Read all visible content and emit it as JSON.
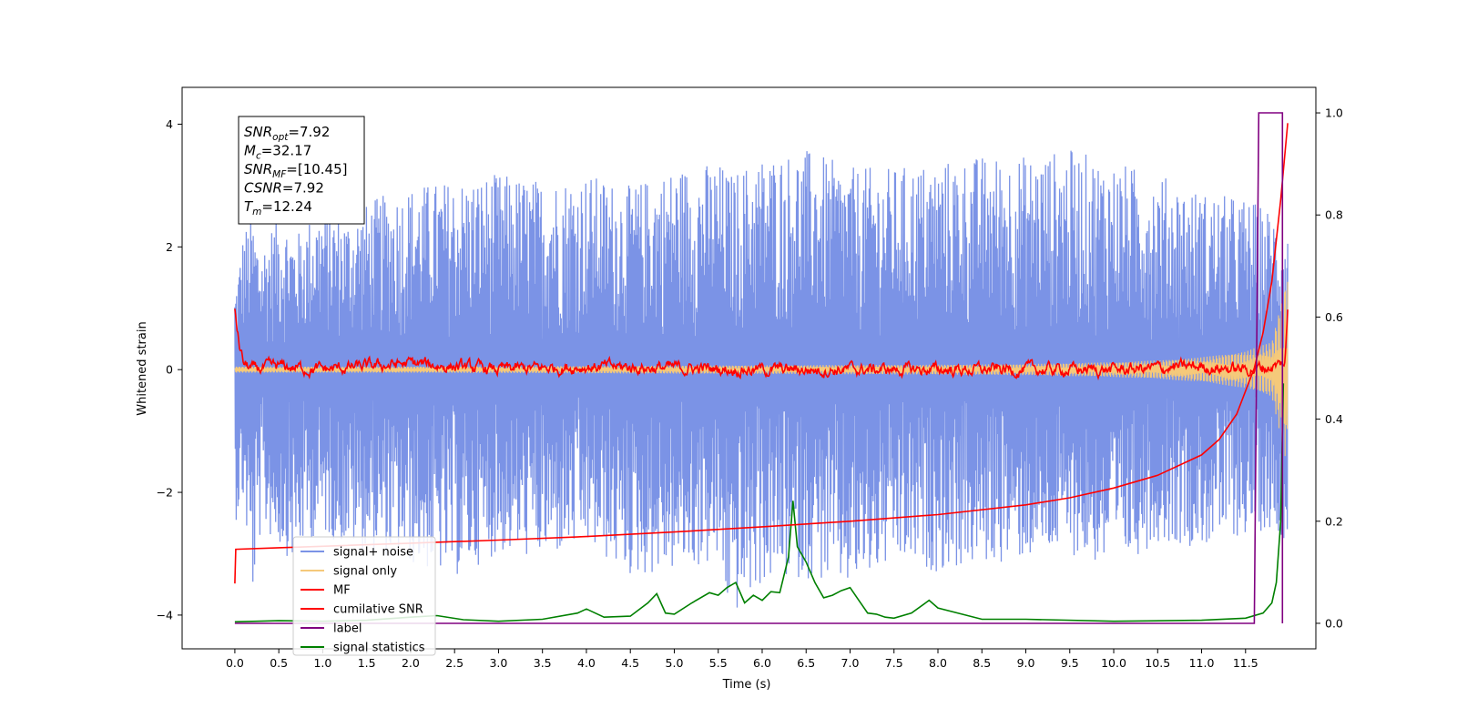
{
  "chart_data": {
    "type": "line",
    "xlabel": "Time (s)",
    "ylabel": "Whitened strain",
    "xlim": [
      -0.6,
      12.3
    ],
    "ylim": [
      -4.55,
      4.6
    ],
    "ylim_right": [
      -0.05,
      1.05
    ],
    "x_ticks": [
      "0.0",
      "0.5",
      "1.0",
      "1.5",
      "2.0",
      "2.5",
      "3.0",
      "3.5",
      "4.0",
      "4.5",
      "5.0",
      "5.5",
      "6.0",
      "6.5",
      "7.0",
      "7.5",
      "8.0",
      "8.5",
      "9.0",
      "9.5",
      "10.0",
      "10.5",
      "11.0",
      "11.5"
    ],
    "y_ticks_left": [
      "4",
      "2",
      "0",
      "−2",
      "−4"
    ],
    "y_ticks_right": [
      "1.0",
      "0.8",
      "0.6",
      "0.4",
      "0.2",
      "0.0"
    ],
    "legend_position": "lower-left",
    "info_box": [
      {
        "base": "SNR",
        "sub": "opt",
        "value": "=7.92"
      },
      {
        "base": "M",
        "sub": "c",
        "value": "=32.17"
      },
      {
        "base": "SNR",
        "sub": "MF",
        "value": "=[10.45]"
      },
      {
        "base": "CSNR",
        "sub": "",
        "value": "=7.92"
      },
      {
        "base": "T",
        "sub": "m",
        "value": "=12.24"
      }
    ],
    "series": [
      {
        "name": "signal+ noise",
        "axis": "left",
        "color": "#7b93e6",
        "description_range": [
          -3.8,
          3.75
        ],
        "x": [
          0.0,
          0.1,
          0.2,
          0.3,
          0.5,
          0.7,
          0.8,
          1.0,
          1.3,
          1.6,
          2.0,
          2.5,
          3.0,
          3.5,
          4.0,
          4.5,
          5.0,
          5.5,
          5.64,
          6.0,
          6.5,
          7.0,
          7.5,
          8.0,
          8.5,
          9.0,
          9.5,
          10.0,
          10.5,
          11.0,
          11.5,
          11.8,
          11.98
        ],
        "upper": [
          1.3,
          2.3,
          2.5,
          2.0,
          2.6,
          2.2,
          2.4,
          2.7,
          2.5,
          2.8,
          3.0,
          3.1,
          3.2,
          3.1,
          3.2,
          3.0,
          3.3,
          3.4,
          3.2,
          3.5,
          3.6,
          3.3,
          3.3,
          3.4,
          3.5,
          3.5,
          3.6,
          3.4,
          3.2,
          2.9,
          2.8,
          2.6,
          2.3
        ],
        "lower": [
          -2.5,
          -2.2,
          -3.8,
          -2.6,
          -2.9,
          -3.2,
          -2.8,
          -2.7,
          -2.9,
          -3.0,
          -3.2,
          -3.4,
          -3.0,
          -3.1,
          -2.9,
          -3.4,
          -3.3,
          -3.2,
          -4.1,
          -3.5,
          -3.4,
          -3.6,
          -3.2,
          -3.3,
          -3.2,
          -3.1,
          -3.0,
          -3.3,
          -2.8,
          -2.9,
          -2.7,
          -2.6,
          -2.8
        ]
      },
      {
        "name": "signal only",
        "axis": "left",
        "color": "#f5c97a",
        "x": [
          0.0,
          2.0,
          4.0,
          6.0,
          8.0,
          9.0,
          10.0,
          10.5,
          11.0,
          11.5,
          11.8,
          11.98
        ],
        "amplitude": [
          0.05,
          0.05,
          0.06,
          0.07,
          0.08,
          0.09,
          0.12,
          0.15,
          0.2,
          0.3,
          0.45,
          1.6
        ]
      },
      {
        "name": "MF",
        "axis": "left",
        "color": "#ff0000",
        "x": [
          0.0,
          0.05,
          0.1,
          0.2,
          0.5,
          1.0,
          2.0,
          3.0,
          4.0,
          6.0,
          8.0,
          10.0,
          11.0,
          11.5,
          11.8,
          11.95,
          11.98
        ],
        "y": [
          1.0,
          0.4,
          0.1,
          0.0,
          0.05,
          0.0,
          0.1,
          0.0,
          0.05,
          0.0,
          0.0,
          0.0,
          0.05,
          0.0,
          0.05,
          0.1,
          0.95
        ]
      },
      {
        "name": "cumilative SNR",
        "axis": "right",
        "color": "#ff0000",
        "x": [
          0.0,
          0.01,
          0.5,
          1.0,
          2.0,
          3.0,
          4.0,
          5.0,
          6.0,
          7.0,
          8.0,
          9.0,
          9.5,
          10.0,
          10.5,
          11.0,
          11.2,
          11.4,
          11.6,
          11.7,
          11.8,
          11.9,
          11.98
        ],
        "y": [
          0.078,
          0.145,
          0.148,
          0.151,
          0.157,
          0.163,
          0.17,
          0.179,
          0.189,
          0.2,
          0.213,
          0.232,
          0.246,
          0.265,
          0.29,
          0.33,
          0.36,
          0.41,
          0.5,
          0.57,
          0.67,
          0.83,
          0.98
        ]
      },
      {
        "name": "label",
        "axis": "right",
        "color": "#800080",
        "x": [
          0.0,
          11.6,
          11.65,
          11.92,
          11.92
        ],
        "y": [
          0.0,
          0.0,
          1.0,
          1.0,
          0.0
        ]
      },
      {
        "name": "signal statistics",
        "axis": "right",
        "color": "#008000",
        "x": [
          0.0,
          0.5,
          1.0,
          1.5,
          2.0,
          2.3,
          2.6,
          3.0,
          3.5,
          3.9,
          4.0,
          4.2,
          4.5,
          4.7,
          4.8,
          4.9,
          5.0,
          5.2,
          5.4,
          5.5,
          5.6,
          5.7,
          5.8,
          5.9,
          6.0,
          6.1,
          6.2,
          6.3,
          6.35,
          6.4,
          6.5,
          6.6,
          6.7,
          6.8,
          6.9,
          7.0,
          7.1,
          7.2,
          7.3,
          7.4,
          7.5,
          7.7,
          7.9,
          8.0,
          8.5,
          9.0,
          10.0,
          11.0,
          11.5,
          11.7,
          11.8,
          11.85,
          11.9,
          11.93
        ],
        "y": [
          0.003,
          0.005,
          0.004,
          0.006,
          0.012,
          0.015,
          0.007,
          0.004,
          0.008,
          0.02,
          0.028,
          0.012,
          0.014,
          0.04,
          0.058,
          0.02,
          0.018,
          0.04,
          0.06,
          0.055,
          0.07,
          0.08,
          0.04,
          0.055,
          0.045,
          0.062,
          0.06,
          0.13,
          0.24,
          0.15,
          0.12,
          0.08,
          0.05,
          0.055,
          0.064,
          0.07,
          0.045,
          0.02,
          0.018,
          0.012,
          0.01,
          0.02,
          0.045,
          0.03,
          0.008,
          0.008,
          0.004,
          0.006,
          0.01,
          0.02,
          0.04,
          0.08,
          0.2,
          0.47
        ]
      }
    ]
  }
}
